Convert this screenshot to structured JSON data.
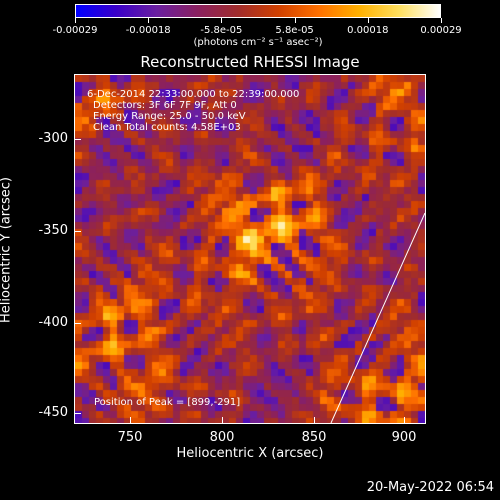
{
  "colorbar": {
    "tick_labels": [
      "-0.00029",
      "-0.00018",
      "-5.8e-05",
      "5.8e-05",
      "0.00018",
      "0.00029"
    ],
    "unit_label": "(photons cm⁻² s⁻¹ asec⁻²)",
    "colormap_stops": [
      "#0000ff",
      "#3a00c8",
      "#6a1fa0",
      "#8a2060",
      "#a02c2c",
      "#d04000",
      "#ff7000",
      "#ffb000",
      "#ffe060",
      "#ffffff"
    ]
  },
  "plot": {
    "title": "Reconstructed RHESSI Image",
    "info_lines": [
      "6-Dec-2014 22:33:00.000 to 22:39:00.000",
      "Detectors: 3F 6F 7F 9F, Att 0",
      "Energy Range: 25.0 - 50.0 keV",
      "Clean     Total counts: 4.58E+03"
    ],
    "peak_label": "Position of Peak = [899,-291]",
    "x_axis_label": "Heliocentric X (arcsec)",
    "y_axis_label": "Heliocentric Y (arcsec)",
    "x_tick_labels": [
      "750",
      "800",
      "850",
      "900"
    ],
    "y_tick_labels": [
      "-300",
      "-350",
      "-400",
      "-450"
    ]
  },
  "timestamp": "20-May-2022 06:54"
}
